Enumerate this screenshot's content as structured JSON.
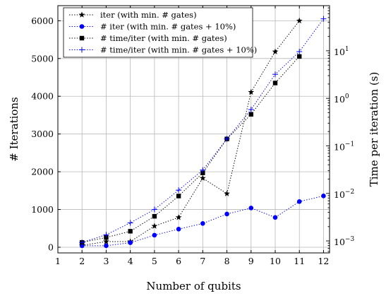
{
  "chart_data": {
    "type": "line",
    "xlabel": "Number of qubits",
    "ylabel_left": "# Iterations",
    "ylabel_right": "Time per iteration (s)",
    "x_ticks": [
      "1",
      "2",
      "3",
      "4",
      "5",
      "6",
      "7",
      "8",
      "9",
      "10",
      "11",
      "12"
    ],
    "xlim": [
      1,
      12.25
    ],
    "y_left": {
      "lim": [
        -150,
        6400
      ],
      "ticks": [
        0,
        1000,
        2000,
        3000,
        4000,
        5000,
        6000
      ],
      "tick_labels": [
        "0",
        "1000",
        "2000",
        "3000",
        "4000",
        "5000",
        "6000"
      ]
    },
    "y_right": {
      "scale": "log",
      "lim": [
        0.00056,
        89
      ],
      "major_ticks": [
        0.001,
        0.01,
        0.1,
        1,
        10
      ],
      "tick_bases": [
        "10",
        "10",
        "10",
        "10",
        "10"
      ],
      "tick_exponents": [
        "−3",
        "−2",
        "−1",
        "0",
        "1"
      ]
    },
    "grid": true,
    "legend_position": "top-left",
    "series": [
      {
        "name": "iter (with min. # gates)",
        "axis": "left",
        "color": "#000000",
        "marker": "star",
        "x": [
          2,
          3,
          4,
          5,
          6,
          7,
          8,
          9,
          10,
          11
        ],
        "y": [
          50,
          150,
          150,
          560,
          790,
          1830,
          1420,
          4110,
          5180,
          6000
        ]
      },
      {
        "name": "# iter (with min. # gates + 10%)",
        "axis": "left",
        "color": "#0000ff",
        "marker": "circle",
        "x": [
          2,
          3,
          4,
          5,
          6,
          7,
          8,
          9,
          10,
          11,
          12
        ],
        "y": [
          40,
          40,
          120,
          320,
          480,
          630,
          880,
          1040,
          790,
          1210,
          1360
        ]
      },
      {
        "name": "# time/iter (with min. # gates)",
        "axis": "right",
        "color": "#000000",
        "marker": "square",
        "x": [
          2,
          3,
          4,
          5,
          6,
          7,
          8,
          9,
          10,
          11
        ],
        "y": [
          0.00093,
          0.00118,
          0.0016,
          0.0033,
          0.0088,
          0.027,
          0.14,
          0.46,
          2.1,
          7.6
        ]
      },
      {
        "name": "# time/iter (with min. # gates + 10%)",
        "axis": "right",
        "color": "#0000ff",
        "marker": "plus",
        "x": [
          2,
          3,
          4,
          5,
          6,
          7,
          8,
          9,
          10,
          11,
          12
        ],
        "y": [
          0.00093,
          0.00135,
          0.0024,
          0.0046,
          0.0117,
          0.031,
          0.14,
          0.58,
          3.2,
          9.6,
          47
        ]
      }
    ]
  }
}
